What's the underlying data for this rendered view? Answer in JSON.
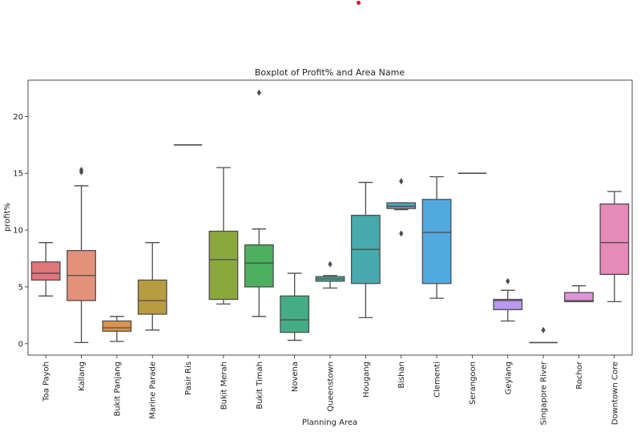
{
  "chart_data": {
    "type": "boxplot",
    "title": "Boxplot of Profit% and Area Name",
    "xlabel": "Planning Area",
    "ylabel": "profit%",
    "ylim": [
      -1,
      23.2
    ],
    "yticks": [
      0,
      5,
      10,
      15,
      20
    ],
    "grid": false,
    "legend": "none",
    "categories": [
      "Toa Payoh",
      "Kallang",
      "Bukit Panjang",
      "Marine Parade",
      "Pasir Ris",
      "Bukit Merah",
      "Bukit Timah",
      "Novena",
      "Queenstown",
      "Hougang",
      "Bishan",
      "Clementi",
      "Serangoon",
      "Geylang",
      "Singapore River",
      "Rochor",
      "Downtown Core"
    ],
    "boxes": [
      {
        "whisker_low": 4.2,
        "q1": 5.6,
        "median": 6.2,
        "q3": 7.2,
        "whisker_high": 8.9,
        "outliers": [],
        "color": "#e1767b"
      },
      {
        "whisker_low": 0.1,
        "q1": 3.8,
        "median": 6.0,
        "q3": 8.2,
        "whisker_high": 13.9,
        "outliers": [
          15.1,
          15.3
        ],
        "color": "#e4917a"
      },
      {
        "whisker_low": 0.2,
        "q1": 1.1,
        "median": 1.4,
        "q3": 2.0,
        "whisker_high": 2.4,
        "outliers": [],
        "color": "#d9954d"
      },
      {
        "whisker_low": 1.2,
        "q1": 2.6,
        "median": 3.8,
        "q3": 5.6,
        "whisker_high": 8.9,
        "outliers": [],
        "color": "#b89c42"
      },
      {
        "whisker_low": 17.5,
        "q1": 17.5,
        "median": 17.5,
        "q3": 17.5,
        "whisker_high": 17.5,
        "outliers": [],
        "color": "#a3a33e"
      },
      {
        "whisker_low": 3.5,
        "q1": 3.9,
        "median": 7.4,
        "q3": 9.9,
        "whisker_high": 15.5,
        "outliers": [],
        "color": "#8ba83f"
      },
      {
        "whisker_low": 2.4,
        "q1": 5.0,
        "median": 7.1,
        "q3": 8.7,
        "whisker_high": 10.1,
        "outliers": [
          22.1
        ],
        "color": "#4caf5d"
      },
      {
        "whisker_low": 0.3,
        "q1": 1.0,
        "median": 2.1,
        "q3": 4.2,
        "whisker_high": 6.2,
        "outliers": [],
        "color": "#45ad86"
      },
      {
        "whisker_low": 4.9,
        "q1": 5.5,
        "median": 5.7,
        "q3": 5.9,
        "whisker_high": 6.0,
        "outliers": [
          7.0
        ],
        "color": "#48ac9b"
      },
      {
        "whisker_low": 2.3,
        "q1": 5.3,
        "median": 8.3,
        "q3": 11.3,
        "whisker_high": 14.2,
        "outliers": [],
        "color": "#48aaad"
      },
      {
        "whisker_low": 11.8,
        "q1": 11.9,
        "median": 12.1,
        "q3": 12.4,
        "whisker_high": 12.4,
        "outliers": [
          14.3,
          9.7
        ],
        "color": "#4fa8c4"
      },
      {
        "whisker_low": 4.0,
        "q1": 5.3,
        "median": 9.8,
        "q3": 12.7,
        "whisker_high": 14.7,
        "outliers": [],
        "color": "#52a9df"
      },
      {
        "whisker_low": 15.0,
        "q1": 15.0,
        "median": 15.0,
        "q3": 15.0,
        "whisker_high": 15.0,
        "outliers": [],
        "color": "#8aa6e4"
      },
      {
        "whisker_low": 2.0,
        "q1": 3.0,
        "median": 3.8,
        "q3": 3.9,
        "whisker_high": 4.7,
        "outliers": [
          5.5
        ],
        "color": "#b89af0"
      },
      {
        "whisker_low": 0.1,
        "q1": 0.1,
        "median": 0.1,
        "q3": 0.1,
        "whisker_high": 0.1,
        "outliers": [
          1.2
        ],
        "color": "#c990e6"
      },
      {
        "whisker_low": 3.7,
        "q1": 3.7,
        "median": 3.8,
        "q3": 4.5,
        "whisker_high": 5.1,
        "outliers": [],
        "color": "#e193dc"
      },
      {
        "whisker_low": 3.7,
        "q1": 6.1,
        "median": 8.9,
        "q3": 12.3,
        "whisker_high": 13.4,
        "outliers": [],
        "color": "#e68ab8"
      }
    ]
  }
}
